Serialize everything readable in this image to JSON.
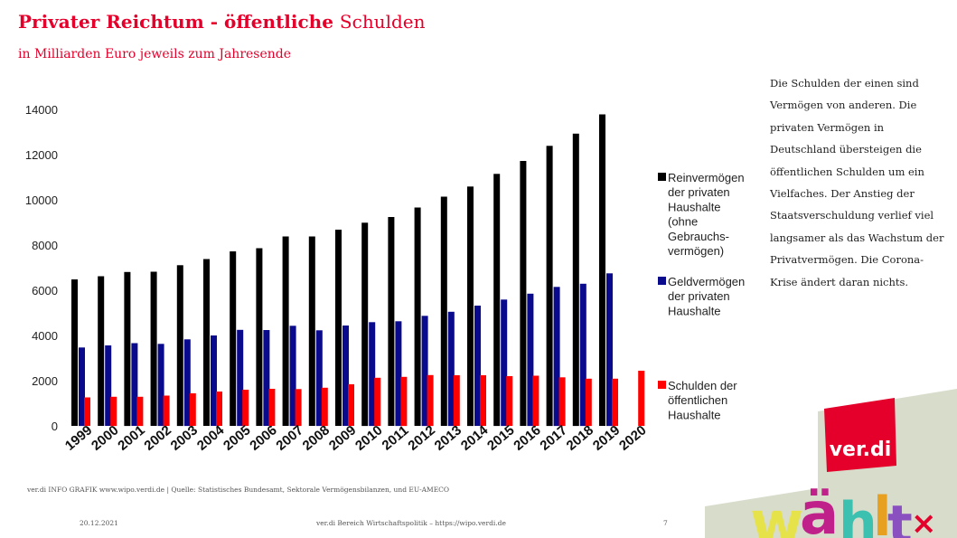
{
  "header": {
    "title_bold": "Privater Reichtum - öffentliche",
    "title_light": "Schulden",
    "subtitle": "in Milliarden Euro jeweils zum Jahresende"
  },
  "side_note": "Die Schulden der einen sind Vermögen von anderen. Die privaten Vermögen in Deutschland übersteigen die öffentlichen Schulden um ein Vielfaches. Der Anstieg der Staatsverschuldung verlief viel langsamer als das Wachstum der Privatvermögen. Die Corona-Krise ändert daran nichts.",
  "footer": {
    "source_prefix": "ver.di INFO GRAFIK www.wipo.verdi.de",
    "source_text": " | Quelle: Statistisches Bundesamt, Sektorale Vermögensbilanzen, und EU-AMECO",
    "date": "20.12.2021",
    "department": "ver.di Bereich Wirtschaftspolitik – https://wipo.verdi.de",
    "page": "7"
  },
  "colors": {
    "accent": "#e4002b",
    "series_1": "#000000",
    "series_2": "#0a0a8c",
    "series_3": "#ff0000"
  },
  "chart_data": {
    "type": "bar",
    "title": "Privater Reichtum - öffentliche Schulden",
    "ylabel": "in Milliarden Euro",
    "ylim": [
      0,
      14000
    ],
    "yticks": [
      0,
      2000,
      4000,
      6000,
      8000,
      10000,
      12000,
      14000
    ],
    "categories": [
      "1999",
      "2000",
      "2001",
      "2002",
      "2003",
      "2004",
      "2005",
      "2006",
      "2007",
      "2008",
      "2009",
      "2010",
      "2011",
      "2012",
      "2013",
      "2014",
      "2015",
      "2016",
      "2017",
      "2018",
      "2019",
      "2020"
    ],
    "series": [
      {
        "name": "Reinvermögen der privaten Haushalte (ohne Gebrauchs-vermögen)",
        "legend_lines": [
          "Reinvermögen",
          "der privaten",
          "Haushalte",
          "(ohne",
          "Gebrauchs-",
          "vermögen)"
        ],
        "color": "#000000",
        "values": [
          6480,
          6620,
          6810,
          6820,
          7110,
          7380,
          7720,
          7860,
          8380,
          8380,
          8680,
          8990,
          9240,
          9660,
          10140,
          10590,
          11150,
          11720,
          12390,
          12930,
          13780,
          null
        ]
      },
      {
        "name": "Geldvermögen der privaten Haushalte",
        "legend_lines": [
          "Geldvermögen",
          "der privaten",
          "Haushalte"
        ],
        "color": "#0a0a8c",
        "values": [
          3470,
          3560,
          3660,
          3630,
          3830,
          4000,
          4250,
          4240,
          4430,
          4230,
          4440,
          4590,
          4630,
          4870,
          5050,
          5320,
          5590,
          5850,
          6150,
          6290,
          6750,
          null
        ]
      },
      {
        "name": "Schulden der öffentlichen Haushalte",
        "legend_lines": [
          "Schulden der",
          "öffentlichen",
          "Haushalte"
        ],
        "color": "#ff0000",
        "values": [
          1260,
          1290,
          1290,
          1340,
          1440,
          1520,
          1600,
          1640,
          1630,
          1690,
          1840,
          2130,
          2170,
          2250,
          2240,
          2240,
          2200,
          2220,
          2150,
          2090,
          2090,
          2440
        ]
      }
    ],
    "legend_position": "right",
    "grid": false
  }
}
